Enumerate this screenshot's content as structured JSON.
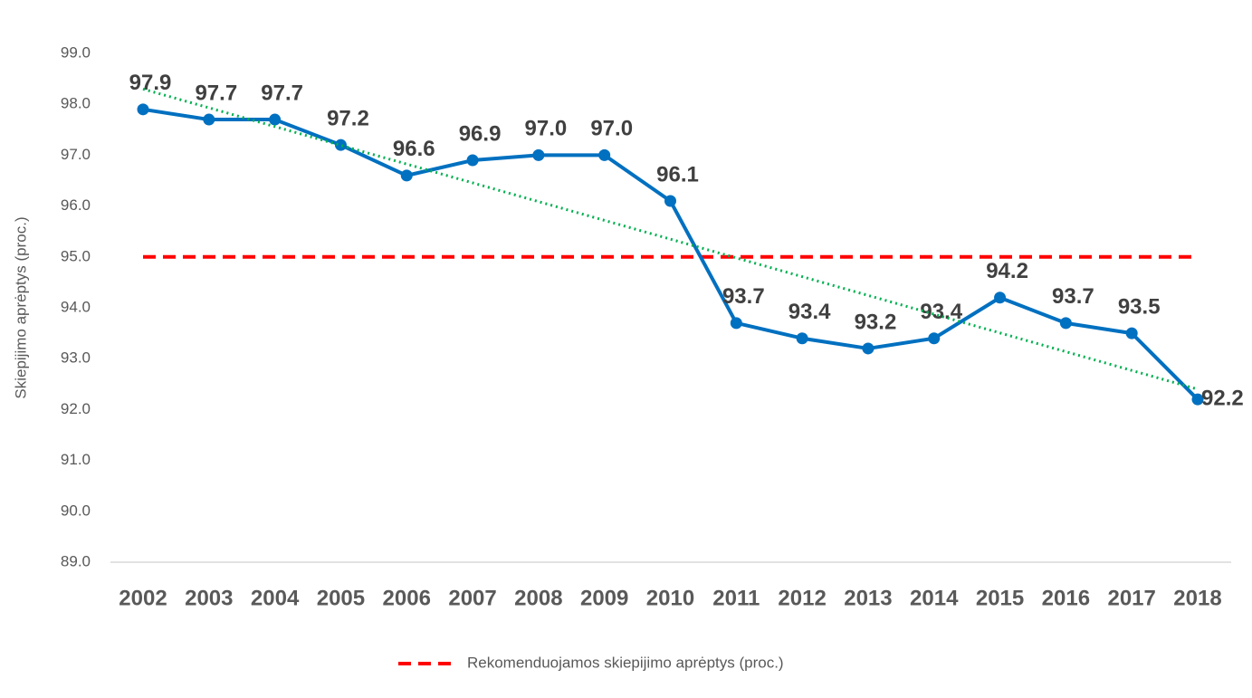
{
  "chart_data": {
    "type": "line",
    "y_label": "Skiepijimo aprėptys (proc.)",
    "categories": [
      "2002",
      "2003",
      "2004",
      "2005",
      "2006",
      "2007",
      "2008",
      "2009",
      "2010",
      "2011",
      "2012",
      "2013",
      "2014",
      "2015",
      "2016",
      "2017",
      "2018"
    ],
    "series": [
      {
        "color": "#0070c0",
        "values": [
          97.9,
          97.7,
          97.7,
          97.2,
          96.6,
          96.9,
          97.0,
          97.0,
          96.1,
          93.7,
          93.4,
          93.2,
          93.4,
          94.2,
          93.7,
          93.5,
          92.2
        ],
        "value_labels": [
          "97.9",
          "97.7",
          "97.7",
          "97.2",
          "96.6",
          "96.9",
          "97.0",
          "97.0",
          "96.1",
          "93.7",
          "93.4",
          "93.2",
          "93.4",
          "94.2",
          "93.7",
          "93.5",
          "92.2"
        ]
      }
    ],
    "reference_lines": [
      {
        "name": "Rekomenduojamos skiepijimo aprėptys (proc.)",
        "color": "#ff0000",
        "value": 95
      }
    ],
    "trendline": {
      "color": "#00b050",
      "start": 98.3,
      "end": 92.4
    },
    "ylim": [
      89,
      99
    ],
    "yticks": [
      {
        "value": 89,
        "label": "89.0"
      },
      {
        "value": 90,
        "label": "90.0"
      },
      {
        "value": 91,
        "label": "91.0"
      },
      {
        "value": 92,
        "label": "92.0"
      },
      {
        "value": 93,
        "label": "93.0"
      },
      {
        "value": 94,
        "label": "94.0"
      },
      {
        "value": 95,
        "label": "95.0"
      },
      {
        "value": 96,
        "label": "96.0"
      },
      {
        "value": 97,
        "label": "97.0"
      },
      {
        "value": 98,
        "label": "98.0"
      },
      {
        "value": 99,
        "label": "99.0"
      }
    ],
    "legend": "bottom"
  }
}
